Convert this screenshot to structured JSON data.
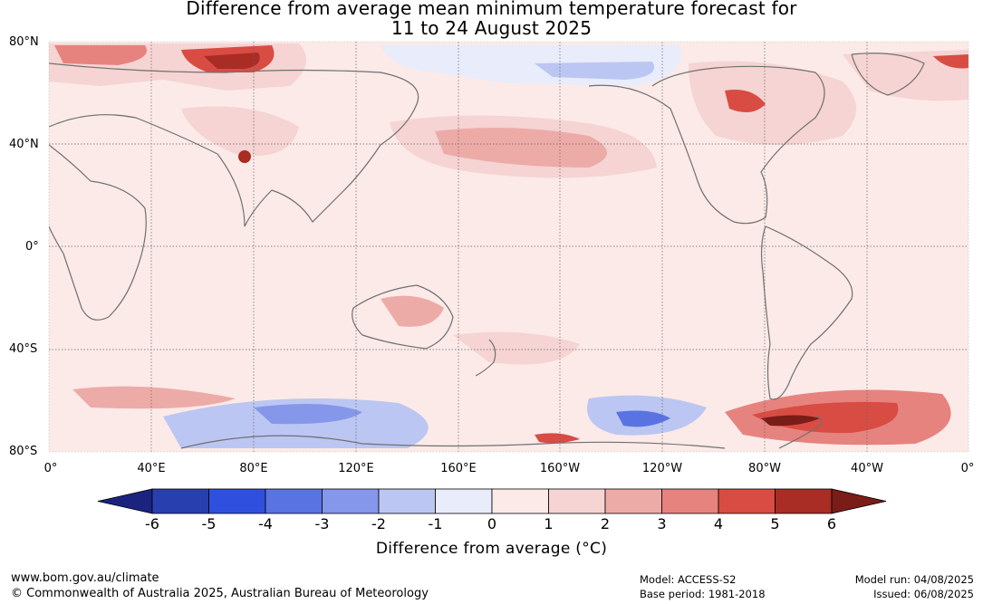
{
  "title": {
    "line1": "Difference from average mean minimum temperature forecast for",
    "line2": "11 to 24 August 2025"
  },
  "map": {
    "lat_labels": [
      "80°N",
      "40°N",
      "0°",
      "40°S",
      "80°S"
    ],
    "lon_labels": [
      "0°",
      "40°E",
      "80°E",
      "120°E",
      "160°E",
      "160°W",
      "120°W",
      "80°W",
      "40°W",
      "0°"
    ],
    "ocean_base_color": "#fbeae8"
  },
  "colorbar": {
    "ticks": [
      "-6",
      "-5",
      "-4",
      "-3",
      "-2",
      "-1",
      "0",
      "1",
      "2",
      "3",
      "4",
      "5",
      "6"
    ],
    "colors": [
      "#1a237e",
      "#283fb0",
      "#2f4fde",
      "#5a73e2",
      "#8597ea",
      "#bcc6f2",
      "#e8ecfb",
      "#fbeae8",
      "#f5d4d3",
      "#edaba7",
      "#e6837e",
      "#d84c43",
      "#a92c25",
      "#7a1c17"
    ],
    "label": "Difference from average (°C)"
  },
  "footer": {
    "url": "www.bom.gov.au/climate",
    "copyright": "© Commonwealth of Australia 2025, Australian Bureau of Meteorology",
    "model": "Model: ACCESS-S2",
    "base_period": "Base period: 1981-2018",
    "model_run": "Model run: 04/08/2025",
    "issued": "Issued: 06/08/2025"
  }
}
